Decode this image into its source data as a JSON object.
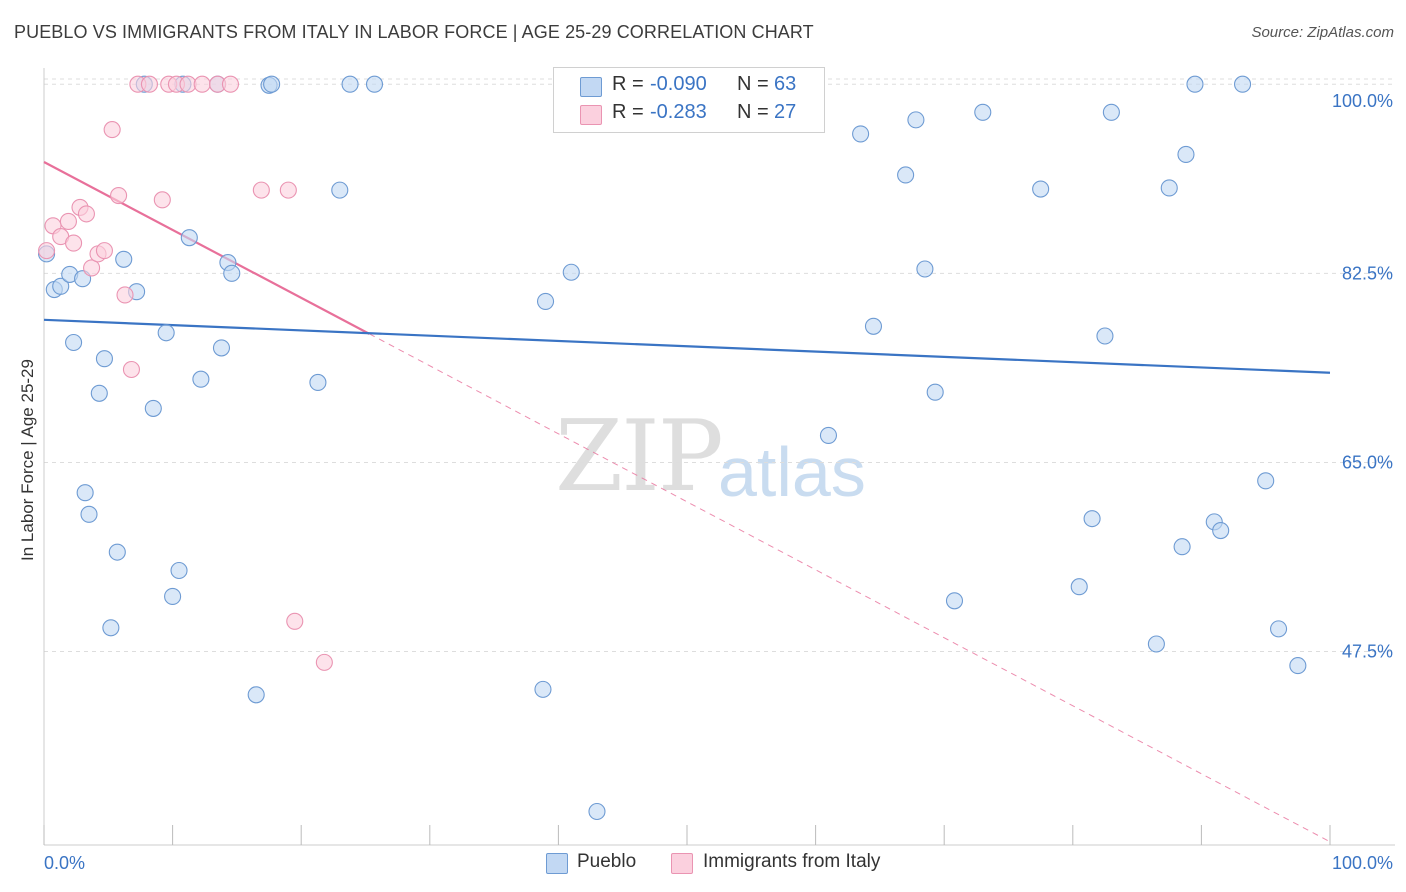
{
  "title": "PUEBLO VS IMMIGRANTS FROM ITALY IN LABOR FORCE | AGE 25-29 CORRELATION CHART",
  "source": "Source: ZipAtlas.com",
  "watermark": {
    "part1": "ZIP",
    "part2": "atlas"
  },
  "colors": {
    "blue": "#3a74c4",
    "blue_fill": "#aecbee",
    "pink": "#e8709a",
    "pink_fill": "#f7bfd1",
    "grid": "#dddddd"
  },
  "legend": {
    "r_label": "R =",
    "n_label": "N =",
    "rows": [
      {
        "r": "-0.090",
        "n": "63"
      },
      {
        "r": "-0.283",
        "n": "27"
      }
    ]
  },
  "chart_data": {
    "type": "scatter",
    "title": "PUEBLO VS IMMIGRANTS FROM ITALY IN LABOR FORCE | AGE 25-29 CORRELATION CHART",
    "xlabel": "",
    "ylabel": "In Labor Force | Age 25-29",
    "xlim": [
      0,
      100
    ],
    "ylim": [
      29.6,
      101.5
    ],
    "x_tick_labels": [
      "0.0%",
      "100.0%"
    ],
    "y_ticks": [
      47.5,
      65.0,
      82.5,
      100.0
    ],
    "y_tick_labels": [
      "47.5%",
      "65.0%",
      "82.5%",
      "100.0%"
    ],
    "series": [
      {
        "name": "Pueblo",
        "color": "blue",
        "r": -0.09,
        "n": 63,
        "trend": {
          "x1": 0,
          "y1": 78.2,
          "x2": 100,
          "y2": 73.3
        },
        "points": [
          [
            0.2,
            84.3
          ],
          [
            0.8,
            81.0
          ],
          [
            1.3,
            81.3
          ],
          [
            2.0,
            82.4
          ],
          [
            2.3,
            76.1
          ],
          [
            3.0,
            82.0
          ],
          [
            3.2,
            62.2
          ],
          [
            3.5,
            60.2
          ],
          [
            4.3,
            71.4
          ],
          [
            4.7,
            74.6
          ],
          [
            5.2,
            49.7
          ],
          [
            5.7,
            56.7
          ],
          [
            6.2,
            83.8
          ],
          [
            7.2,
            80.8
          ],
          [
            8.5,
            70.0
          ],
          [
            9.5,
            77.0
          ],
          [
            10.0,
            52.6
          ],
          [
            10.5,
            55.0
          ],
          [
            11.3,
            85.8
          ],
          [
            12.2,
            72.7
          ],
          [
            13.8,
            75.6
          ],
          [
            14.3,
            83.5
          ],
          [
            14.6,
            82.5
          ],
          [
            16.5,
            43.5
          ],
          [
            17.5,
            99.9
          ],
          [
            17.7,
            100.0
          ],
          [
            21.3,
            72.4
          ],
          [
            23.0,
            90.2
          ],
          [
            23.8,
            100.0
          ],
          [
            25.7,
            100.0
          ],
          [
            38.8,
            44.0
          ],
          [
            39.0,
            79.9
          ],
          [
            41.0,
            82.6
          ],
          [
            43.0,
            32.7
          ],
          [
            45.5,
            100.0
          ],
          [
            61.0,
            67.5
          ],
          [
            63.5,
            95.4
          ],
          [
            64.5,
            77.6
          ],
          [
            67.0,
            91.6
          ],
          [
            67.8,
            96.7
          ],
          [
            68.5,
            82.9
          ],
          [
            69.3,
            71.5
          ],
          [
            70.8,
            52.2
          ],
          [
            73.0,
            97.4
          ],
          [
            77.5,
            90.3
          ],
          [
            80.5,
            53.5
          ],
          [
            81.5,
            59.8
          ],
          [
            82.5,
            76.7
          ],
          [
            83.0,
            97.4
          ],
          [
            86.5,
            48.2
          ],
          [
            87.5,
            90.4
          ],
          [
            88.5,
            57.2
          ],
          [
            88.8,
            93.5
          ],
          [
            89.5,
            100.0
          ],
          [
            91.0,
            59.5
          ],
          [
            91.5,
            58.7
          ],
          [
            93.2,
            100.0
          ],
          [
            95.0,
            63.3
          ],
          [
            96.0,
            49.6
          ],
          [
            97.5,
            46.2
          ],
          [
            10.8,
            100.0
          ],
          [
            7.8,
            100.0
          ],
          [
            13.5,
            100.0
          ]
        ]
      },
      {
        "name": "Immigrants from Italy",
        "color": "pink",
        "r": -0.283,
        "n": 27,
        "trend": {
          "x1": 0,
          "y1": 92.8,
          "x2": 25.3,
          "y2": 76.9
        },
        "trend_dashed": {
          "x1": 25.3,
          "y1": 76.9,
          "x2": 100,
          "y2": 29.9
        },
        "points": [
          [
            0.2,
            84.6
          ],
          [
            0.7,
            86.9
          ],
          [
            1.3,
            85.9
          ],
          [
            1.9,
            87.3
          ],
          [
            2.3,
            85.3
          ],
          [
            2.8,
            88.6
          ],
          [
            3.3,
            88.0
          ],
          [
            3.7,
            83.0
          ],
          [
            4.2,
            84.3
          ],
          [
            4.7,
            84.6
          ],
          [
            5.3,
            95.8
          ],
          [
            5.8,
            89.7
          ],
          [
            6.3,
            80.5
          ],
          [
            6.8,
            73.6
          ],
          [
            7.3,
            100.0
          ],
          [
            8.2,
            100.0
          ],
          [
            9.2,
            89.3
          ],
          [
            9.7,
            100.0
          ],
          [
            10.3,
            100.0
          ],
          [
            11.2,
            100.0
          ],
          [
            12.3,
            100.0
          ],
          [
            13.5,
            100.0
          ],
          [
            14.5,
            100.0
          ],
          [
            16.9,
            90.2
          ],
          [
            19.0,
            90.2
          ],
          [
            19.5,
            50.3
          ],
          [
            21.8,
            46.5
          ]
        ]
      }
    ]
  },
  "bottom_legend": [
    {
      "label": "Pueblo",
      "color": "blue"
    },
    {
      "label": "Immigrants from Italy",
      "color": "pink"
    }
  ]
}
